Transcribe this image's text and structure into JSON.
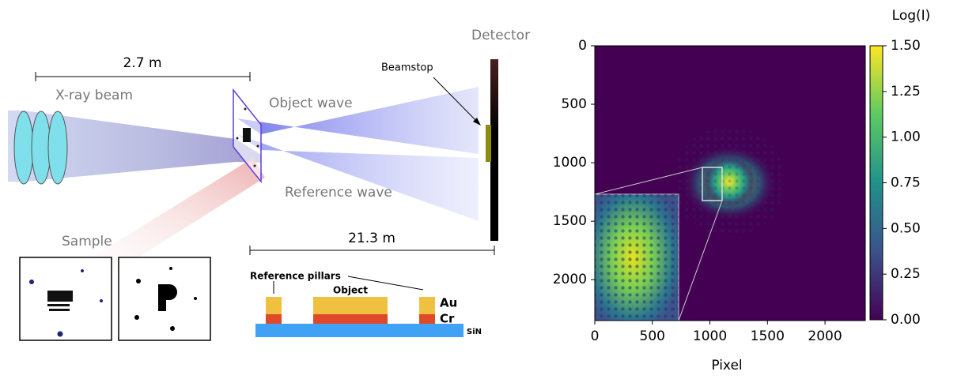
{
  "diagram": {
    "labels": {
      "distance1": "2.7 m",
      "beam": "X-ray beam",
      "object_wave": "Object wave",
      "reference_wave": "Reference wave",
      "detector": "Detector",
      "beamstop": "Beamstop",
      "sample": "Sample",
      "distance2": "21.3 m",
      "pillars": "Reference pillars",
      "object": "Object",
      "au": "Au",
      "cr": "Cr",
      "sin": "SiN"
    }
  },
  "chart_data": {
    "type": "heatmap",
    "xlabel": "Pixel",
    "colorbar_label": "Log(I)",
    "xlim": [
      0,
      2350
    ],
    "ylim": [
      2350,
      0
    ],
    "xticks": [
      0,
      500,
      1000,
      1500,
      2000
    ],
    "yticks": [
      0,
      500,
      1000,
      1500,
      2000
    ],
    "clim": [
      0,
      1.5
    ],
    "cticks": [
      {
        "value": 0,
        "label": "0.00"
      },
      {
        "value": 0.25,
        "label": "0.25"
      },
      {
        "value": 0.5,
        "label": "0.50"
      },
      {
        "value": 0.75,
        "label": "0.75"
      },
      {
        "value": 1,
        "label": "1.00"
      },
      {
        "value": 1.25,
        "label": "1.25"
      },
      {
        "value": 1.5,
        "label": "1.50"
      }
    ],
    "colormap": [
      "#440154",
      "#3b528b",
      "#21918c",
      "#5ec962",
      "#fde725"
    ]
  }
}
